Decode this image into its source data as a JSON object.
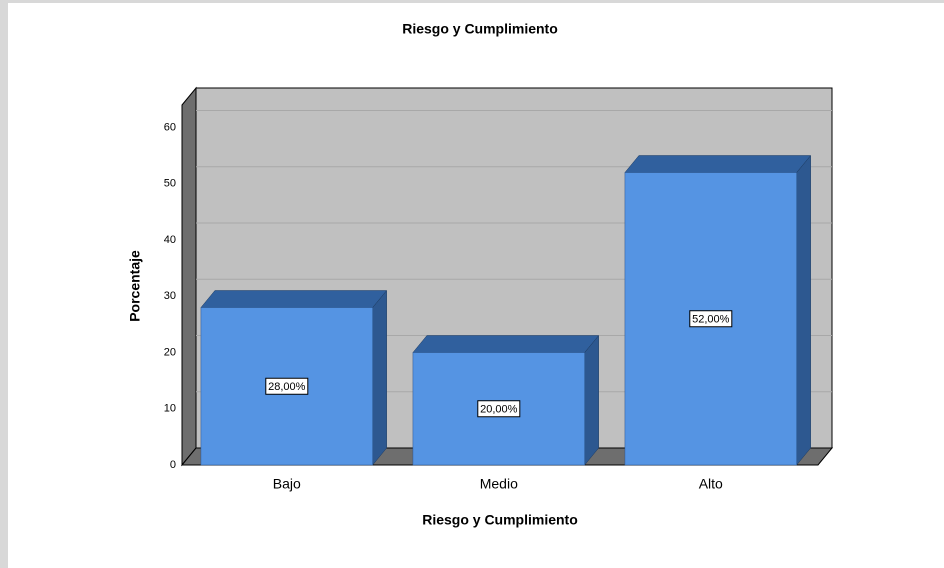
{
  "chart_data": {
    "type": "bar3d",
    "title": "Riesgo y Cumplimiento",
    "x_label": "Riesgo y Cumplimiento",
    "y_label": "Porcentaje",
    "categories": [
      "Bajo",
      "Medio",
      "Alto"
    ],
    "values": [
      28,
      20,
      52
    ],
    "value_labels": [
      "28,00%",
      "20,00%",
      "52,00%"
    ],
    "color": "#5594e3",
    "ylim": [
      0,
      64
    ],
    "yticks": [
      0,
      10,
      20,
      30,
      40,
      50,
      60
    ],
    "grid": true
  }
}
